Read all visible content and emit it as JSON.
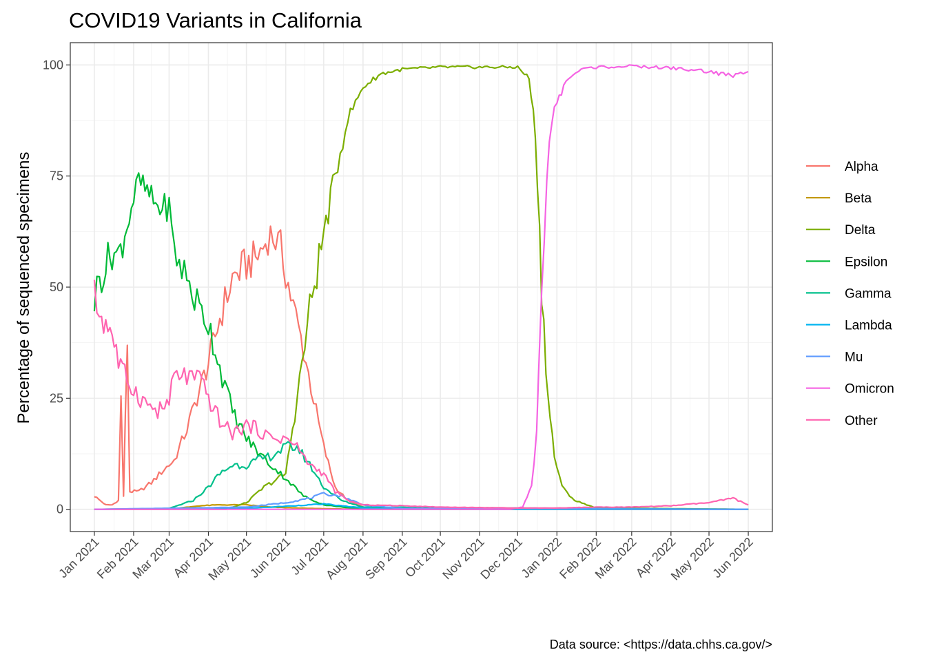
{
  "chart_data": {
    "type": "line",
    "title": "COVID19 Variants in California",
    "xlabel": "",
    "ylabel": "Percentage of sequenced specimens",
    "caption": "Data source: <https://data.chhs.ca.gov/>",
    "x_range": [
      "2020-12-13",
      "2022-06-20"
    ],
    "ylim": [
      -5,
      105
    ],
    "y_ticks": [
      0,
      25,
      50,
      75,
      100
    ],
    "x_ticks": [
      {
        "date": "2021-01-01",
        "label": "Jan 2021"
      },
      {
        "date": "2021-02-01",
        "label": "Feb 2021"
      },
      {
        "date": "2021-03-01",
        "label": "Mar 2021"
      },
      {
        "date": "2021-04-01",
        "label": "Apr 2021"
      },
      {
        "date": "2021-05-01",
        "label": "May 2021"
      },
      {
        "date": "2021-06-01",
        "label": "Jun 2021"
      },
      {
        "date": "2021-07-01",
        "label": "Jul 2021"
      },
      {
        "date": "2021-08-01",
        "label": "Aug 2021"
      },
      {
        "date": "2021-09-01",
        "label": "Sep 2021"
      },
      {
        "date": "2021-10-01",
        "label": "Oct 2021"
      },
      {
        "date": "2021-11-01",
        "label": "Nov 2021"
      },
      {
        "date": "2021-12-01",
        "label": "Dec 2021"
      },
      {
        "date": "2022-01-01",
        "label": "Jan 2022"
      },
      {
        "date": "2022-02-01",
        "label": "Feb 2022"
      },
      {
        "date": "2022-03-01",
        "label": "Mar 2022"
      },
      {
        "date": "2022-04-01",
        "label": "Apr 2022"
      },
      {
        "date": "2022-05-01",
        "label": "May 2022"
      },
      {
        "date": "2022-06-01",
        "label": "Jun 2022"
      }
    ],
    "grid": true,
    "legend_position": "right",
    "series": [
      {
        "name": "Alpha",
        "color": "#F8766D",
        "points": [
          [
            "2021-01-01",
            3
          ],
          [
            "2021-01-10",
            1
          ],
          [
            "2021-01-15",
            1
          ],
          [
            "2021-01-20",
            2
          ],
          [
            "2021-01-22",
            25
          ],
          [
            "2021-01-24",
            3
          ],
          [
            "2021-01-27",
            38
          ],
          [
            "2021-01-29",
            4
          ],
          [
            "2021-02-05",
            4
          ],
          [
            "2021-02-15",
            6
          ],
          [
            "2021-02-25",
            9
          ],
          [
            "2021-03-05",
            11
          ],
          [
            "2021-03-15",
            18
          ],
          [
            "2021-03-25",
            27
          ],
          [
            "2021-04-01",
            33
          ],
          [
            "2021-04-10",
            43
          ],
          [
            "2021-04-20",
            52
          ],
          [
            "2021-05-01",
            55
          ],
          [
            "2021-05-10",
            57
          ],
          [
            "2021-05-20",
            62
          ],
          [
            "2021-05-28",
            59
          ],
          [
            "2021-06-05",
            48
          ],
          [
            "2021-06-15",
            36
          ],
          [
            "2021-06-25",
            22
          ],
          [
            "2021-07-01",
            14
          ],
          [
            "2021-07-10",
            5
          ],
          [
            "2021-07-20",
            2
          ],
          [
            "2021-08-01",
            0.5
          ],
          [
            "2021-09-01",
            0.1
          ],
          [
            "2022-06-01",
            0
          ]
        ]
      },
      {
        "name": "Beta",
        "color": "#C49A00",
        "points": [
          [
            "2021-01-01",
            0
          ],
          [
            "2021-03-01",
            0
          ],
          [
            "2021-03-25",
            0.8
          ],
          [
            "2021-04-10",
            1
          ],
          [
            "2021-05-01",
            1
          ],
          [
            "2021-05-20",
            0.5
          ],
          [
            "2021-06-20",
            0.2
          ],
          [
            "2021-08-01",
            0
          ],
          [
            "2022-06-01",
            0
          ]
        ]
      },
      {
        "name": "Delta",
        "color": "#7CAE00",
        "points": [
          [
            "2021-01-01",
            0
          ],
          [
            "2021-04-15",
            0
          ],
          [
            "2021-05-01",
            1.5
          ],
          [
            "2021-05-15",
            5
          ],
          [
            "2021-06-01",
            8
          ],
          [
            "2021-06-10",
            25
          ],
          [
            "2021-06-20",
            45
          ],
          [
            "2021-07-01",
            62
          ],
          [
            "2021-07-10",
            75
          ],
          [
            "2021-07-20",
            88
          ],
          [
            "2021-08-01",
            95
          ],
          [
            "2021-08-15",
            98
          ],
          [
            "2021-09-01",
            99
          ],
          [
            "2021-10-01",
            99.5
          ],
          [
            "2021-11-01",
            99.5
          ],
          [
            "2021-12-01",
            99.5
          ],
          [
            "2021-12-10",
            97
          ],
          [
            "2021-12-15",
            85
          ],
          [
            "2021-12-20",
            50
          ],
          [
            "2021-12-25",
            25
          ],
          [
            "2021-12-30",
            12
          ],
          [
            "2022-01-05",
            5
          ],
          [
            "2022-01-15",
            2
          ],
          [
            "2022-02-01",
            0.3
          ],
          [
            "2022-06-01",
            0
          ]
        ]
      },
      {
        "name": "Epsilon",
        "color": "#00BA38",
        "points": [
          [
            "2021-01-01",
            47
          ],
          [
            "2021-01-05",
            52
          ],
          [
            "2021-01-10",
            55
          ],
          [
            "2021-01-15",
            58
          ],
          [
            "2021-01-20",
            57
          ],
          [
            "2021-01-25",
            62
          ],
          [
            "2021-02-01",
            70
          ],
          [
            "2021-02-05",
            74
          ],
          [
            "2021-02-10",
            72
          ],
          [
            "2021-02-15",
            70
          ],
          [
            "2021-02-20",
            68
          ],
          [
            "2021-03-01",
            68
          ],
          [
            "2021-03-05",
            58
          ],
          [
            "2021-03-15",
            52
          ],
          [
            "2021-03-25",
            45
          ],
          [
            "2021-04-01",
            42
          ],
          [
            "2021-04-10",
            32
          ],
          [
            "2021-04-20",
            22
          ],
          [
            "2021-05-01",
            16
          ],
          [
            "2021-05-10",
            13
          ],
          [
            "2021-05-20",
            10
          ],
          [
            "2021-06-01",
            7
          ],
          [
            "2021-06-15",
            3
          ],
          [
            "2021-07-01",
            1
          ],
          [
            "2021-08-01",
            0
          ],
          [
            "2022-06-01",
            0
          ]
        ]
      },
      {
        "name": "Gamma",
        "color": "#00C08B",
        "points": [
          [
            "2021-01-01",
            0
          ],
          [
            "2021-03-01",
            0.2
          ],
          [
            "2021-03-20",
            2
          ],
          [
            "2021-04-01",
            5
          ],
          [
            "2021-04-10",
            8
          ],
          [
            "2021-04-20",
            10
          ],
          [
            "2021-05-01",
            10
          ],
          [
            "2021-05-10",
            11
          ],
          [
            "2021-05-20",
            12
          ],
          [
            "2021-06-01",
            14
          ],
          [
            "2021-06-10",
            14
          ],
          [
            "2021-06-20",
            10
          ],
          [
            "2021-07-01",
            5
          ],
          [
            "2021-07-15",
            2
          ],
          [
            "2021-08-01",
            0.5
          ],
          [
            "2022-06-01",
            0
          ]
        ]
      },
      {
        "name": "Lambda",
        "color": "#00B4F0",
        "points": [
          [
            "2021-01-01",
            0
          ],
          [
            "2021-05-01",
            0.2
          ],
          [
            "2021-06-01",
            0.7
          ],
          [
            "2021-07-01",
            1.2
          ],
          [
            "2021-08-01",
            0.3
          ],
          [
            "2021-09-01",
            0
          ],
          [
            "2022-06-01",
            0
          ]
        ]
      },
      {
        "name": "Mu",
        "color": "#619CFF",
        "points": [
          [
            "2021-01-01",
            0
          ],
          [
            "2021-05-01",
            0.5
          ],
          [
            "2021-06-01",
            1.5
          ],
          [
            "2021-06-20",
            2.5
          ],
          [
            "2021-07-01",
            3.5
          ],
          [
            "2021-07-15",
            3
          ],
          [
            "2021-08-01",
            1
          ],
          [
            "2021-09-01",
            0.2
          ],
          [
            "2022-06-01",
            0
          ]
        ]
      },
      {
        "name": "Omicron",
        "color": "#F564E3",
        "points": [
          [
            "2021-01-01",
            0
          ],
          [
            "2021-11-25",
            0
          ],
          [
            "2021-12-05",
            0.5
          ],
          [
            "2021-12-12",
            5
          ],
          [
            "2021-12-16",
            18
          ],
          [
            "2021-12-20",
            50
          ],
          [
            "2021-12-24",
            75
          ],
          [
            "2021-12-28",
            87
          ],
          [
            "2022-01-01",
            92
          ],
          [
            "2022-01-10",
            97
          ],
          [
            "2022-01-20",
            99
          ],
          [
            "2022-02-01",
            99.5
          ],
          [
            "2022-03-01",
            99.7
          ],
          [
            "2022-04-01",
            99.3
          ],
          [
            "2022-05-01",
            98.5
          ],
          [
            "2022-05-20",
            97.5
          ],
          [
            "2022-06-01",
            98.5
          ]
        ]
      },
      {
        "name": "Other",
        "color": "#FF64B0",
        "points": [
          [
            "2021-01-01",
            48
          ],
          [
            "2021-01-05",
            44
          ],
          [
            "2021-01-10",
            42
          ],
          [
            "2021-01-15",
            40
          ],
          [
            "2021-01-20",
            33
          ],
          [
            "2021-01-25",
            30
          ],
          [
            "2021-02-01",
            27
          ],
          [
            "2021-02-10",
            24
          ],
          [
            "2021-02-20",
            22
          ],
          [
            "2021-03-01",
            24
          ],
          [
            "2021-03-05",
            30
          ],
          [
            "2021-03-15",
            30
          ],
          [
            "2021-03-25",
            29
          ],
          [
            "2021-04-01",
            25
          ],
          [
            "2021-04-10",
            20
          ],
          [
            "2021-04-20",
            17
          ],
          [
            "2021-05-01",
            19
          ],
          [
            "2021-05-10",
            18
          ],
          [
            "2021-05-20",
            16
          ],
          [
            "2021-06-01",
            16
          ],
          [
            "2021-06-10",
            14
          ],
          [
            "2021-06-20",
            10
          ],
          [
            "2021-07-01",
            8
          ],
          [
            "2021-07-10",
            4
          ],
          [
            "2021-07-20",
            2
          ],
          [
            "2021-08-01",
            1
          ],
          [
            "2021-09-01",
            0.8
          ],
          [
            "2021-10-01",
            0.5
          ],
          [
            "2021-11-01",
            0.4
          ],
          [
            "2021-12-01",
            0.3
          ],
          [
            "2022-01-01",
            0.3
          ],
          [
            "2022-02-01",
            0.5
          ],
          [
            "2022-03-01",
            0.5
          ],
          [
            "2022-04-01",
            0.8
          ],
          [
            "2022-05-01",
            1.5
          ],
          [
            "2022-05-20",
            2.5
          ],
          [
            "2022-06-01",
            1
          ]
        ]
      }
    ]
  }
}
